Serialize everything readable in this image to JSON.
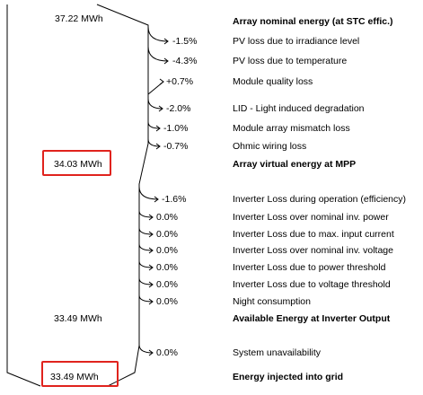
{
  "colors": {
    "highlight": "#e0231d",
    "line": "#000000"
  },
  "energy_flow": {
    "start": {
      "value": "37.22 MWh",
      "label": "Array nominal energy (at STC effic.)"
    },
    "array_losses": [
      {
        "pct": "-1.5%",
        "label": "PV loss due to irradiance level"
      },
      {
        "pct": "-4.3%",
        "label": "PV loss due to temperature"
      },
      {
        "pct": "+0.7%",
        "label": "Module quality loss"
      },
      {
        "pct": "-2.0%",
        "label": "LID - Light induced degradation"
      },
      {
        "pct": "-1.0%",
        "label": "Module array mismatch loss"
      },
      {
        "pct": "-0.7%",
        "label": "Ohmic wiring loss"
      }
    ],
    "mpp": {
      "value": "34.03 MWh",
      "label": "Array virtual energy at MPP"
    },
    "inverter_losses": [
      {
        "pct": "-1.6%",
        "label": "Inverter Loss during operation (efficiency)"
      },
      {
        "pct": "0.0%",
        "label": "Inverter Loss over nominal inv. power"
      },
      {
        "pct": "0.0%",
        "label": "Inverter Loss due to max. input current"
      },
      {
        "pct": "0.0%",
        "label": "Inverter Loss over nominal inv. voltage"
      },
      {
        "pct": "0.0%",
        "label": "Inverter Loss due to power threshold"
      },
      {
        "pct": "0.0%",
        "label": "Inverter Loss due to voltage threshold"
      },
      {
        "pct": "0.0%",
        "label": "Night consumption"
      }
    ],
    "inverter_output": {
      "value": "33.49 MWh",
      "label": "Available Energy at Inverter Output"
    },
    "system_losses": [
      {
        "pct": "0.0%",
        "label": "System unavailability"
      }
    ],
    "grid": {
      "value": "33.49 MWh",
      "label": "Energy injected into grid"
    }
  }
}
